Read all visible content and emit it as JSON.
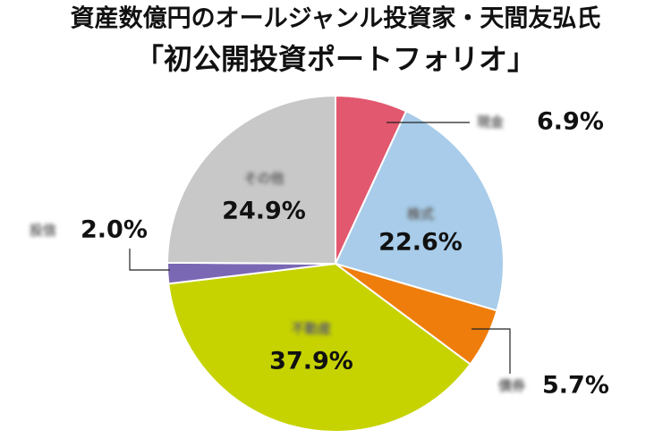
{
  "chart_data": {
    "type": "pie",
    "title": "資産数億円のオールジャンル投資家・天間友弘氏",
    "subtitle": "「初公開投資ポートフォリオ」",
    "categories": [
      "現金",
      "株式",
      "債券",
      "不動産",
      "投信",
      "その他"
    ],
    "values": [
      6.9,
      22.6,
      5.7,
      37.9,
      2.0,
      24.9
    ],
    "value_labels": [
      "6.9%",
      "22.6%",
      "5.7%",
      "37.9%",
      "2.0%",
      "24.9%"
    ],
    "colors": [
      "#e2586f",
      "#a8cce9",
      "#ef7d0b",
      "#c6d300",
      "#7a68b5",
      "#c8c8c8"
    ]
  }
}
